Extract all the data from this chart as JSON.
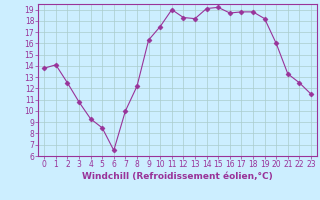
{
  "x": [
    0,
    1,
    2,
    3,
    4,
    5,
    6,
    7,
    8,
    9,
    10,
    11,
    12,
    13,
    14,
    15,
    16,
    17,
    18,
    19,
    20,
    21,
    22,
    23
  ],
  "y": [
    13.8,
    14.1,
    12.5,
    10.8,
    9.3,
    8.5,
    6.5,
    10.0,
    12.2,
    16.3,
    17.5,
    19.0,
    18.3,
    18.2,
    19.1,
    19.2,
    18.7,
    18.8,
    18.8,
    18.2,
    16.0,
    13.3,
    12.5,
    11.5
  ],
  "line_color": "#993399",
  "marker": "D",
  "marker_size": 2.5,
  "bg_color": "#cceeff",
  "grid_color": "#aacccc",
  "xlabel": "Windchill (Refroidissement éolien,°C)",
  "ylim": [
    6,
    19.5
  ],
  "xlim": [
    -0.5,
    23.5
  ],
  "yticks": [
    6,
    7,
    8,
    9,
    10,
    11,
    12,
    13,
    14,
    15,
    16,
    17,
    18,
    19
  ],
  "xticks": [
    0,
    1,
    2,
    3,
    4,
    5,
    6,
    7,
    8,
    9,
    10,
    11,
    12,
    13,
    14,
    15,
    16,
    17,
    18,
    19,
    20,
    21,
    22,
    23
  ],
  "tick_fontsize": 5.5,
  "xlabel_fontsize": 6.5
}
